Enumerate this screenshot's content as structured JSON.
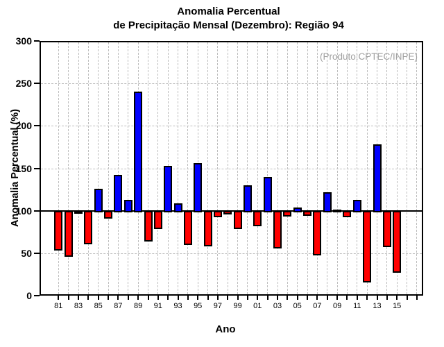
{
  "chart_data": {
    "type": "bar",
    "title": [
      "Anomalia Percentual",
      "de Precipitação Mensal (Dezembro): Região 94"
    ],
    "annotation": "(Produto:CPTEC/INPE)",
    "xlabel": "Ano",
    "ylabel": "Anomalia Percentual (%)",
    "ylim": [
      0,
      300
    ],
    "yticks": [
      0,
      50,
      100,
      150,
      200,
      250,
      300
    ],
    "baseline_value": 100,
    "grid": "dashed",
    "x_axis_years_range": [
      1981,
      2017
    ],
    "x_tick_labels": [
      "81",
      "83",
      "85",
      "87",
      "89",
      "91",
      "93",
      "95",
      "97",
      "99",
      "01",
      "03",
      "05",
      "07",
      "09",
      "11",
      "13",
      "15"
    ],
    "years": [
      1981,
      1982,
      1983,
      1984,
      1985,
      1986,
      1987,
      1988,
      1989,
      1990,
      1991,
      1992,
      1993,
      1994,
      1995,
      1996,
      1997,
      1998,
      1999,
      2000,
      2001,
      2002,
      2003,
      2004,
      2005,
      2006,
      2007,
      2008,
      2009,
      2010,
      2011,
      2012,
      2013,
      2014,
      2015
    ],
    "values": [
      55,
      47,
      98,
      62,
      126,
      92,
      142,
      113,
      240,
      65,
      80,
      153,
      109,
      61,
      156,
      60,
      94,
      97,
      80,
      130,
      83,
      140,
      57,
      95,
      104,
      96,
      49,
      122,
      101,
      94,
      113,
      17,
      178,
      59,
      29
    ],
    "colors": {
      "above_baseline": "#0000ff",
      "below_baseline": "#ff0000",
      "bar_border": "#000000",
      "gridline": "#bdbdbd",
      "axis": "#000000",
      "annotation_text": "#a0a0a0",
      "background": "#ffffff"
    }
  }
}
